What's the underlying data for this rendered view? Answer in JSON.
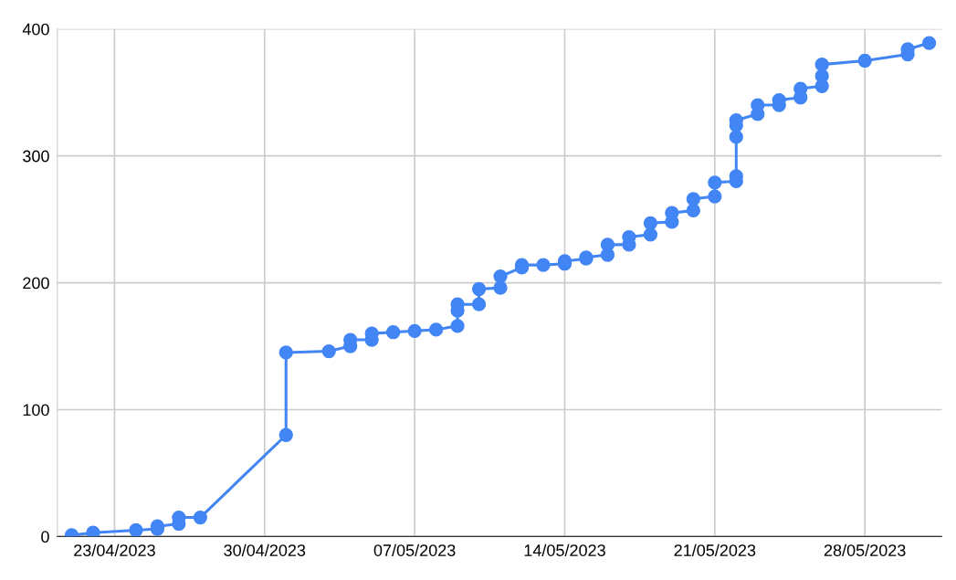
{
  "chart_data": {
    "type": "line",
    "marker": "circle",
    "line_style": "solid",
    "grid": true,
    "legend": false,
    "xlim": [
      "2023-04-20T08:00",
      "2023-05-31T14:00"
    ],
    "xticks": [
      {
        "value": "2023-04-23",
        "label": "23/04/2023"
      },
      {
        "value": "2023-04-30",
        "label": "30/04/2023"
      },
      {
        "value": "2023-05-07",
        "label": "07/05/2023"
      },
      {
        "value": "2023-05-14",
        "label": "14/05/2023"
      },
      {
        "value": "2023-05-21",
        "label": "21/05/2023"
      },
      {
        "value": "2023-05-28",
        "label": "28/05/2023"
      }
    ],
    "ylim": [
      0,
      400
    ],
    "yticks": [
      0,
      100,
      200,
      300,
      400
    ],
    "series": [
      {
        "color": "#4285f4",
        "x": [
          "2023-04-21",
          "2023-04-22",
          "2023-04-24",
          "2023-04-25",
          "2023-04-25",
          "2023-04-26",
          "2023-04-26",
          "2023-04-27",
          "2023-05-01",
          "2023-05-01",
          "2023-05-03",
          "2023-05-04",
          "2023-05-04",
          "2023-05-05",
          "2023-05-05",
          "2023-05-06",
          "2023-05-07",
          "2023-05-08",
          "2023-05-09",
          "2023-05-09",
          "2023-05-09",
          "2023-05-10",
          "2023-05-10",
          "2023-05-11",
          "2023-05-11",
          "2023-05-12",
          "2023-05-12",
          "2023-05-13",
          "2023-05-14",
          "2023-05-14",
          "2023-05-15",
          "2023-05-15",
          "2023-05-16",
          "2023-05-16",
          "2023-05-17",
          "2023-05-17",
          "2023-05-18",
          "2023-05-18",
          "2023-05-19",
          "2023-05-19",
          "2023-05-20",
          "2023-05-20",
          "2023-05-21",
          "2023-05-21",
          "2023-05-22",
          "2023-05-22",
          "2023-05-22",
          "2023-05-22",
          "2023-05-22",
          "2023-05-23",
          "2023-05-23",
          "2023-05-24",
          "2023-05-24",
          "2023-05-25",
          "2023-05-25",
          "2023-05-26",
          "2023-05-26",
          "2023-05-26",
          "2023-05-28",
          "2023-05-30",
          "2023-05-30",
          "2023-05-31"
        ],
        "values": [
          1,
          3,
          5,
          6,
          8,
          10,
          15,
          15,
          80,
          145,
          146,
          150,
          155,
          155,
          160,
          161,
          162,
          163,
          166,
          178,
          183,
          183,
          195,
          196,
          205,
          212,
          214,
          214,
          215,
          217,
          219,
          220,
          222,
          230,
          230,
          236,
          238,
          247,
          248,
          255,
          257,
          266,
          268,
          279,
          280,
          284,
          315,
          324,
          328,
          333,
          340,
          340,
          344,
          346,
          353,
          355,
          363,
          372,
          375,
          380,
          384,
          389
        ]
      }
    ]
  }
}
